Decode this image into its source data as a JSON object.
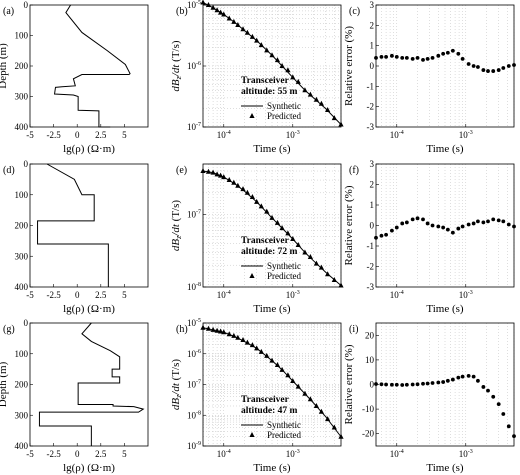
{
  "chart_data": [
    {
      "panel": "(a)",
      "type": "line",
      "xlabel": "lg(ρ) (Ω·m)",
      "ylabel": "Depth (m)",
      "xlim": [
        -5,
        7.5
      ],
      "ylim": [
        0,
        400
      ],
      "y_inverted": true,
      "xticks": [
        "-5",
        "-2.5",
        "0",
        "2.5",
        "5"
      ],
      "yticks": [
        "0",
        "100",
        "200",
        "300",
        "400"
      ],
      "x": [
        -0.7,
        -1.2,
        0.5,
        3.2,
        5.1,
        5.6,
        5.5,
        0.5,
        -0.4,
        -0.2,
        -1.6,
        -2.3,
        -2.4,
        -0.4,
        0.1,
        0.1,
        2.3,
        2.3,
        3.5,
        3.5
      ],
      "y": [
        0,
        25,
        90,
        150,
        195,
        225,
        228,
        228,
        242,
        265,
        268,
        270,
        292,
        295,
        300,
        345,
        347,
        400,
        400,
        400
      ]
    },
    {
      "panel": "(b)",
      "type": "line",
      "xlabel": "Time (s)",
      "ylabel": "dBz/dt (T/s)",
      "xscale": "log",
      "yscale": "log",
      "xlim": [
        5e-05,
        0.005
      ],
      "ylim": [
        1e-07,
        1e-05
      ],
      "xticks": [
        "10^-4",
        "10^-3"
      ],
      "yticks": [
        "10^-5",
        "10^-6",
        "10^-7"
      ],
      "annotation": [
        "Transceiver",
        "altitude: 55 m"
      ],
      "series": [
        {
          "name": "Synthetic",
          "style": "line",
          "x": [
            5e-05,
            7e-05,
            0.0001,
            0.00015,
            0.0002,
            0.0003,
            0.0005,
            0.0007,
            0.001,
            0.0015,
            0.002,
            0.003,
            0.005
          ],
          "y": [
            1.1e-05,
            9e-06,
            7e-06,
            5e-06,
            3.8e-06,
            2.6e-06,
            1.5e-06,
            1e-06,
            6.5e-07,
            4e-07,
            3e-07,
            2e-07,
            1.1e-07
          ]
        },
        {
          "name": "Predicted",
          "style": "triangle",
          "x": [
            5e-05,
            6e-05,
            7e-05,
            8e-05,
            9e-05,
            0.0001,
            0.00012,
            0.00014,
            0.00016,
            0.00019,
            0.00022,
            0.00026,
            0.0003,
            0.00035,
            0.00042,
            0.0005,
            0.0006,
            0.0007,
            0.00085,
            0.001,
            0.0012,
            0.0015,
            0.0018,
            0.0022,
            0.0026,
            0.0032,
            0.004,
            0.005
          ],
          "y": [
            1.1e-05,
            1e-05,
            9e-06,
            8.2e-06,
            7.5e-06,
            7e-06,
            6e-06,
            5.3e-06,
            4.7e-06,
            4e-06,
            3.5e-06,
            3e-06,
            2.6e-06,
            2.2e-06,
            1.8e-06,
            1.5e-06,
            1.25e-06,
            1e-06,
            8.5e-07,
            6.5e-07,
            5.5e-07,
            4e-07,
            3.4e-07,
            2.8e-07,
            2.4e-07,
            1.9e-07,
            1.4e-07,
            1.1e-07
          ]
        }
      ]
    },
    {
      "panel": "(c)",
      "type": "scatter",
      "xlabel": "Time (s)",
      "ylabel": "Relative error (%)",
      "xscale": "log",
      "xlim": [
        5e-05,
        0.005
      ],
      "ylim": [
        -3,
        3
      ],
      "xticks": [
        "10^-4",
        "10^-3"
      ],
      "yticks": [
        "3",
        "2",
        "1",
        "0",
        "-1",
        "-2",
        "-3"
      ],
      "series": [
        {
          "name": "",
          "x": [
            5e-05,
            6e-05,
            7e-05,
            8.5e-05,
            0.0001,
            0.00012,
            0.00014,
            0.00017,
            0.0002,
            0.00024,
            0.00028,
            0.00033,
            0.0004,
            0.00047,
            0.00055,
            0.00065,
            0.00078,
            0.0009,
            0.0011,
            0.0013,
            0.0015,
            0.0018,
            0.0021,
            0.0025,
            0.003,
            0.0035,
            0.0042,
            0.005
          ],
          "y": [
            0.4,
            0.45,
            0.45,
            0.5,
            0.45,
            0.4,
            0.4,
            0.35,
            0.4,
            0.3,
            0.35,
            0.4,
            0.5,
            0.6,
            0.65,
            0.75,
            0.6,
            0.35,
            0.1,
            0.0,
            -0.05,
            -0.2,
            -0.25,
            -0.25,
            -0.2,
            -0.1,
            0.0,
            0.05
          ]
        }
      ]
    },
    {
      "panel": "(d)",
      "type": "line",
      "xlabel": "lg(ρ) (Ω·m)",
      "ylabel": "",
      "xlim": [
        -5,
        7.5
      ],
      "ylim": [
        0,
        400
      ],
      "y_inverted": true,
      "xticks": [
        "-5",
        "-2.5",
        "0",
        "2.5",
        "5"
      ],
      "yticks": [
        "0",
        "100",
        "200",
        "300",
        "400"
      ],
      "x": [
        -3.2,
        -0.3,
        0.5,
        1.8,
        1.8,
        -4.2,
        -4.2,
        3.1,
        3.3,
        3.3
      ],
      "y": [
        0,
        50,
        100,
        100,
        185,
        185,
        260,
        260,
        260,
        400
      ]
    },
    {
      "panel": "(e)",
      "type": "line",
      "xlabel": "Time (s)",
      "ylabel": "dBz/dt (T/s)",
      "xscale": "log",
      "yscale": "log",
      "xlim": [
        5e-05,
        0.005
      ],
      "ylim": [
        1e-08,
        5e-07
      ],
      "xticks": [
        "10^-4",
        "10^-3"
      ],
      "yticks": [
        "10^-7",
        "10^-8"
      ],
      "annotation": [
        "Transceiver",
        "altitude: 72 m"
      ],
      "series": [
        {
          "name": "Synthetic",
          "style": "line",
          "x": [
            5e-05,
            7e-05,
            0.0001,
            0.00015,
            0.0002,
            0.0003,
            0.0005,
            0.0007,
            0.001,
            0.0015,
            0.002,
            0.003,
            0.005
          ],
          "y": [
            4e-07,
            3.8e-07,
            3.3e-07,
            2.6e-07,
            2.1e-07,
            1.5e-07,
            9e-08,
            6.5e-08,
            4.6e-08,
            3e-08,
            2.3e-08,
            1.6e-08,
            1.05e-08
          ]
        },
        {
          "name": "Predicted",
          "style": "triangle",
          "x": [
            5e-05,
            6e-05,
            7e-05,
            8e-05,
            9e-05,
            0.0001,
            0.00012,
            0.00014,
            0.00016,
            0.00019,
            0.00022,
            0.00026,
            0.0003,
            0.00035,
            0.00042,
            0.0005,
            0.0006,
            0.0007,
            0.00085,
            0.001,
            0.0012,
            0.0015,
            0.0018,
            0.0022,
            0.0026,
            0.0032,
            0.004,
            0.005
          ],
          "y": [
            4e-07,
            3.9e-07,
            3.8e-07,
            3.6e-07,
            3.45e-07,
            3.3e-07,
            3e-07,
            2.75e-07,
            2.5e-07,
            2.25e-07,
            2e-07,
            1.75e-07,
            1.5e-07,
            1.3e-07,
            1.1e-07,
            9e-08,
            7.7e-08,
            6.5e-08,
            5.5e-08,
            4.6e-08,
            3.8e-08,
            3e-08,
            2.6e-08,
            2.1e-08,
            1.85e-08,
            1.5e-08,
            1.25e-08,
            1.05e-08
          ]
        }
      ]
    },
    {
      "panel": "(f)",
      "type": "scatter",
      "xlabel": "Time (s)",
      "ylabel": "Relative error (%)",
      "xscale": "log",
      "xlim": [
        5e-05,
        0.005
      ],
      "ylim": [
        -3,
        3
      ],
      "xticks": [
        "10^-4",
        "10^-3"
      ],
      "yticks": [
        "3",
        "2",
        "1",
        "0",
        "-1",
        "-2",
        "-3"
      ],
      "series": [
        {
          "name": "",
          "x": [
            5e-05,
            6e-05,
            7e-05,
            8.5e-05,
            0.0001,
            0.00012,
            0.00014,
            0.00017,
            0.0002,
            0.00024,
            0.00028,
            0.00033,
            0.0004,
            0.00047,
            0.00055,
            0.00065,
            0.00078,
            0.0009,
            0.0011,
            0.0013,
            0.0015,
            0.0018,
            0.0021,
            0.0025,
            0.003,
            0.0035,
            0.0042,
            0.005
          ],
          "y": [
            -0.6,
            -0.5,
            -0.45,
            -0.25,
            -0.1,
            0.1,
            0.15,
            0.3,
            0.35,
            0.3,
            0.1,
            0.0,
            -0.05,
            -0.1,
            -0.2,
            -0.35,
            -0.15,
            -0.05,
            0.05,
            0.1,
            0.2,
            0.15,
            0.2,
            0.3,
            0.25,
            0.2,
            0.05,
            -0.05
          ]
        }
      ]
    },
    {
      "panel": "(g)",
      "type": "line",
      "xlabel": "lg(ρ) (Ω·m)",
      "ylabel": "Depth (m)",
      "xlim": [
        -5,
        7.5
      ],
      "ylim": [
        0,
        400
      ],
      "y_inverted": true,
      "xticks": [
        "-5",
        "-2.5",
        "0",
        "2.5",
        "5"
      ],
      "yticks": [
        "0",
        "100",
        "200",
        "300",
        "400"
      ],
      "x": [
        1.5,
        0.5,
        1.5,
        3.5,
        4.5,
        4.5,
        3.7,
        3.7,
        4.5,
        4.5,
        0.1,
        0.1,
        3.8,
        3.8,
        6.0,
        7.0,
        6.5,
        -4.0,
        -4.0,
        1.5,
        1.5
      ],
      "y": [
        0,
        35,
        60,
        90,
        110,
        150,
        150,
        175,
        175,
        195,
        195,
        265,
        265,
        270,
        272,
        280,
        290,
        290,
        335,
        335,
        400
      ]
    },
    {
      "panel": "(h)",
      "type": "line",
      "xlabel": "Time (s)",
      "ylabel": "dBz/dt (T/s)",
      "xscale": "log",
      "yscale": "log",
      "xlim": [
        5e-05,
        0.005
      ],
      "ylim": [
        1e-09,
        1e-05
      ],
      "xticks": [
        "10^-4",
        "10^-3"
      ],
      "yticks": [
        "10^-5",
        "10^-6",
        "10^-7",
        "10^-8",
        "10^-9"
      ],
      "annotation": [
        "Transceiver",
        "altitude: 47 m"
      ],
      "series": [
        {
          "name": "Synthetic",
          "style": "line",
          "x": [
            5e-05,
            7e-05,
            0.0001,
            0.00015,
            0.0002,
            0.0003,
            0.0005,
            0.0007,
            0.001,
            0.0015,
            0.002,
            0.003,
            0.005
          ],
          "y": [
            7e-06,
            6e-06,
            5e-06,
            3.5e-06,
            2.5e-06,
            1.5e-06,
            6e-07,
            3e-07,
            1.3e-07,
            5e-08,
            2.5e-08,
            9e-09,
            2e-09
          ]
        },
        {
          "name": "Predicted",
          "style": "triangle",
          "x": [
            5e-05,
            6e-05,
            7e-05,
            8e-05,
            9e-05,
            0.0001,
            0.00012,
            0.00014,
            0.00016,
            0.00019,
            0.00022,
            0.00026,
            0.0003,
            0.00035,
            0.00042,
            0.0005,
            0.0006,
            0.0007,
            0.00085,
            0.001,
            0.0012,
            0.0015,
            0.0018,
            0.0022,
            0.0026,
            0.0032,
            0.004,
            0.005
          ],
          "y": [
            7e-06,
            6.5e-06,
            6e-06,
            5.6e-06,
            5.3e-06,
            5e-06,
            4.3e-06,
            3.8e-06,
            3.3e-06,
            2.8e-06,
            2.3e-06,
            1.9e-06,
            1.5e-06,
            1.15e-06,
            8.5e-07,
            6e-07,
            4.3e-07,
            3e-07,
            2e-07,
            1.3e-07,
            8.5e-08,
            5e-08,
            3.3e-08,
            2e-08,
            1.3e-08,
            7.5e-09,
            4e-09,
            2e-09
          ]
        }
      ]
    },
    {
      "panel": "(i)",
      "type": "scatter",
      "xlabel": "Time (s)",
      "ylabel": "Relative error (%)",
      "xscale": "log",
      "xlim": [
        5e-05,
        0.005
      ],
      "ylim": [
        -25,
        25
      ],
      "xticks": [
        "10^-4",
        "10^-3"
      ],
      "yticks": [
        "20",
        "10",
        "0",
        "-10",
        "-20"
      ],
      "series": [
        {
          "name": "",
          "x": [
            5e-05,
            6e-05,
            7e-05,
            8.5e-05,
            0.0001,
            0.00012,
            0.00014,
            0.00017,
            0.0002,
            0.00024,
            0.00028,
            0.00033,
            0.0004,
            0.00047,
            0.00055,
            0.00065,
            0.00078,
            0.0009,
            0.0011,
            0.0013,
            0.0015,
            0.0018,
            0.0021,
            0.0025,
            0.003,
            0.0035,
            0.0042,
            0.005
          ],
          "y": [
            0.2,
            0.1,
            0.0,
            -0.1,
            -0.1,
            -0.2,
            -0.1,
            0.0,
            0.1,
            0.3,
            0.4,
            0.6,
            0.8,
            1.0,
            1.5,
            2.0,
            2.8,
            3.2,
            3.5,
            3.2,
            1.5,
            -1.0,
            -2.5,
            -5.0,
            -8.0,
            -12.0,
            -17.0,
            -21.0
          ]
        }
      ]
    }
  ]
}
